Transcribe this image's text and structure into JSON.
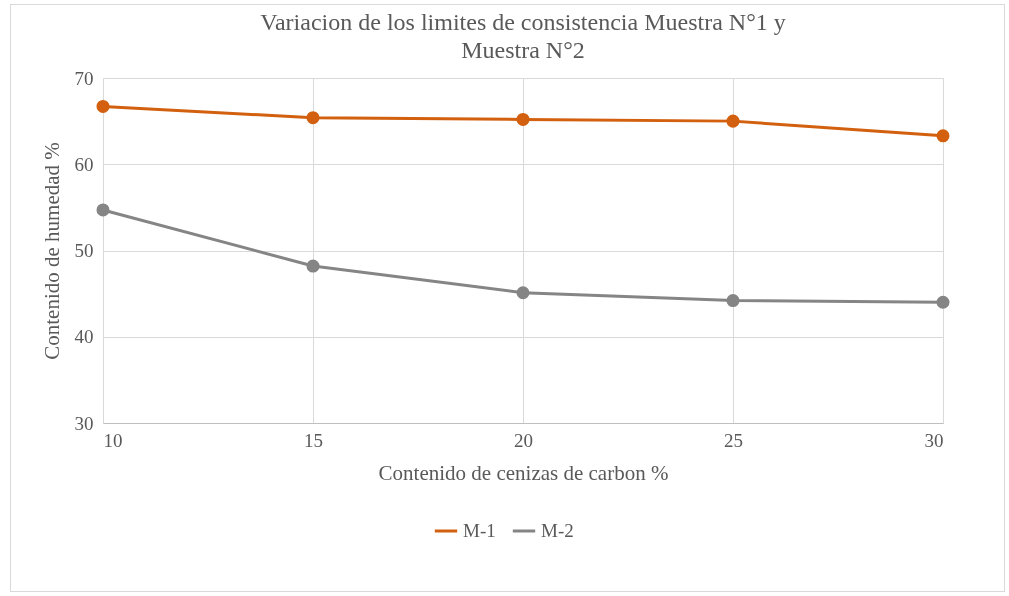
{
  "chart_data": {
    "type": "line",
    "title": "Variacion de los limites de consistencia Muestra N°1 y Muestra N°2",
    "xlabel": "Contenido de cenizas de carbon %",
    "ylabel": "Contenido de humedad %",
    "x": [
      10,
      15,
      20,
      25,
      30
    ],
    "series": [
      {
        "name": "M-1",
        "color": "#d2600e",
        "values": [
          66.7,
          65.4,
          65.2,
          65.0,
          63.3
        ]
      },
      {
        "name": "M-2",
        "color": "#858585",
        "values": [
          54.7,
          48.2,
          45.1,
          44.2,
          44.0
        ]
      }
    ],
    "xlim": [
      10,
      30
    ],
    "xticks": [
      10,
      15,
      20,
      25,
      30
    ],
    "ylim": [
      30,
      70
    ],
    "yticks": [
      30,
      40,
      50,
      60,
      70
    ],
    "grid": true,
    "legend": "bottom",
    "marker": "circle",
    "line_style": "solid"
  }
}
